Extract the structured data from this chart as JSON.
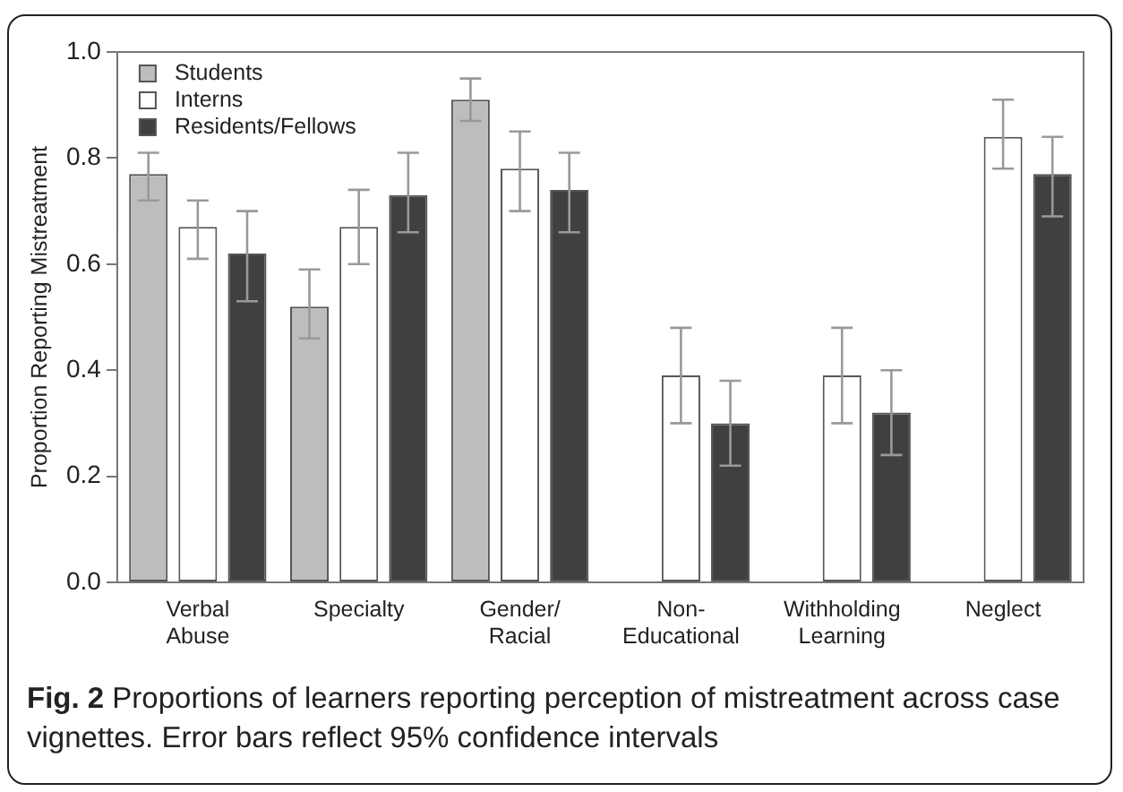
{
  "chart_data": {
    "type": "bar",
    "ylabel": "Proportion Reporting Mistreatment",
    "categories": [
      "Verbal Abuse",
      "Specialty",
      "Gender/Racial",
      "Non-Educational",
      "Withholding Learning",
      "Neglect"
    ],
    "ylim": [
      0,
      1
    ],
    "yticks": [
      {
        "value": 0,
        "label": "0.0"
      },
      {
        "value": 0.2,
        "label": "0.2"
      },
      {
        "value": 0.4,
        "label": "0.4"
      },
      {
        "value": 0.6,
        "label": "0.6"
      },
      {
        "value": 0.8,
        "label": "0.8"
      },
      {
        "value": 1,
        "label": "1.0"
      }
    ],
    "grid": false,
    "legend": "top left",
    "series": [
      {
        "name": "Students",
        "color": "#bdbdbd",
        "values": [
          0.77,
          0.52,
          0.91,
          0,
          0,
          0
        ],
        "errors": [
          [
            0.72,
            0.81
          ],
          [
            0.46,
            0.59
          ],
          [
            0.87,
            0.95
          ],
          null,
          null,
          null
        ]
      },
      {
        "name": "Interns",
        "color": "#ffffff",
        "values": [
          0.67,
          0.67,
          0.78,
          0.39,
          0.39,
          0.84
        ],
        "errors": [
          [
            0.61,
            0.72
          ],
          [
            0.6,
            0.74
          ],
          [
            0.7,
            0.85
          ],
          [
            0.3,
            0.48
          ],
          [
            0.3,
            0.48
          ],
          [
            0.78,
            0.91
          ]
        ]
      },
      {
        "name": "Residents/Fellows",
        "color": "#404040",
        "values": [
          0.62,
          0.73,
          0.74,
          0.3,
          0.32,
          0.77
        ],
        "errors": [
          [
            0.53,
            0.7
          ],
          [
            0.66,
            0.81
          ],
          [
            0.66,
            0.81
          ],
          [
            0.22,
            0.38
          ],
          [
            0.24,
            0.4
          ],
          [
            0.69,
            0.84
          ]
        ]
      }
    ],
    "annotations": [
      "Fig. 2 Proportions of learners reporting perception of mistreatment across case vignettes. Error bars reflect 95% confidence intervals"
    ]
  }
}
